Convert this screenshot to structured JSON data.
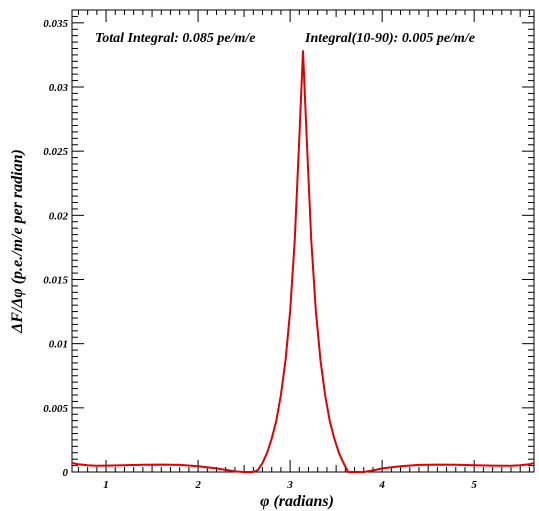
{
  "chart_data": {
    "type": "line",
    "xlabel": "φ (radians)",
    "ylabel": "ΔF/Δφ (p.e./m/e per radian)",
    "xlim": [
      0.63,
      5.65
    ],
    "ylim": [
      0,
      0.036
    ],
    "x_ticks": [
      {
        "value": 1,
        "label": "1"
      },
      {
        "value": 2,
        "label": "2"
      },
      {
        "value": 3,
        "label": "3"
      },
      {
        "value": 4,
        "label": "4"
      },
      {
        "value": 5,
        "label": "5"
      }
    ],
    "y_ticks": [
      {
        "value": 0,
        "label": "0"
      },
      {
        "value": 0.005,
        "label": "0.005"
      },
      {
        "value": 0.01,
        "label": "0.01"
      },
      {
        "value": 0.015,
        "label": "0.015"
      },
      {
        "value": 0.02,
        "label": "0.02"
      },
      {
        "value": 0.025,
        "label": "0.025"
      },
      {
        "value": 0.03,
        "label": "0.03"
      },
      {
        "value": 0.035,
        "label": "0.035"
      }
    ],
    "grid": false,
    "annotations": [
      {
        "text": "Total Integral: 0.085 pe/m/e"
      },
      {
        "text": "Integral(10-90): 0.005 pe/m/e"
      }
    ],
    "series": [
      {
        "color": "#e00000",
        "x": [
          0.63,
          0.7,
          0.8,
          0.9,
          1.0,
          1.2,
          1.4,
          1.6,
          1.8,
          2.0,
          2.2,
          2.3,
          2.4,
          2.5,
          2.6,
          2.65,
          2.7,
          2.75,
          2.8,
          2.85,
          2.9,
          2.95,
          3.0,
          3.05,
          3.1,
          3.14,
          3.18,
          3.23,
          3.28,
          3.33,
          3.38,
          3.43,
          3.48,
          3.53,
          3.58,
          3.63,
          3.7,
          3.8,
          3.9,
          4.0,
          4.2,
          4.4,
          4.6,
          4.8,
          5.0,
          5.2,
          5.4,
          5.5,
          5.6,
          5.65
        ],
        "y": [
          0.0007,
          0.0006,
          0.00052,
          0.00048,
          0.0005,
          0.00053,
          0.00056,
          0.00058,
          0.00055,
          0.00045,
          0.00028,
          0.00016,
          5e-05,
          0.0,
          0.0,
          0.00015,
          0.0007,
          0.0015,
          0.0026,
          0.004,
          0.006,
          0.0087,
          0.0125,
          0.018,
          0.026,
          0.0328,
          0.026,
          0.018,
          0.0125,
          0.0087,
          0.006,
          0.004,
          0.0026,
          0.0015,
          0.0007,
          0.0,
          0.0,
          0.0,
          0.00012,
          0.00028,
          0.00045,
          0.00055,
          0.00058,
          0.00056,
          0.00053,
          0.0005,
          0.00048,
          0.00052,
          0.0006,
          0.0007
        ]
      }
    ]
  }
}
